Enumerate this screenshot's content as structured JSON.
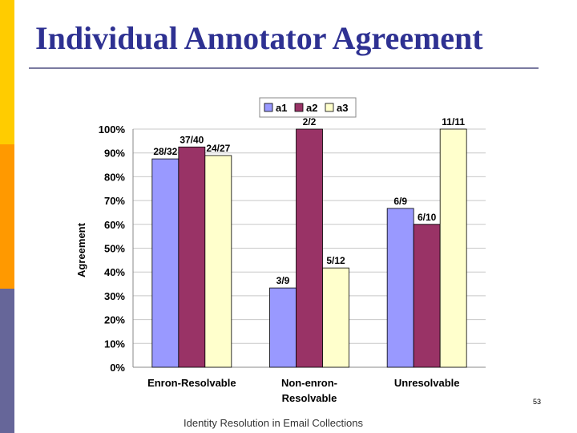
{
  "slide": {
    "title": "Individual Annotator Agreement",
    "footer": "Identity Resolution in Email Collections",
    "page_number": "53"
  },
  "colors": {
    "title": "#2e3192",
    "sidebar_top": "#ffcc00",
    "sidebar_mid": "#ff9900",
    "sidebar_bottom": "#666699",
    "a1": "#9999ff",
    "a2": "#993366",
    "a3": "#ffffcc"
  },
  "chart_data": {
    "type": "bar",
    "categories": [
      [
        "Enron-Resolvable"
      ],
      [
        "Non-enron-",
        "Resolvable"
      ],
      [
        "Unresolvable"
      ]
    ],
    "series": [
      {
        "name": "a1",
        "values": [
          87.5,
          33.3,
          66.7
        ],
        "labels": [
          "28/32",
          "3/9",
          "6/9"
        ]
      },
      {
        "name": "a2",
        "values": [
          92.5,
          100,
          60.0
        ],
        "labels": [
          "37/40",
          "2/2",
          "6/10"
        ]
      },
      {
        "name": "a3",
        "values": [
          88.9,
          41.7,
          100
        ],
        "labels": [
          "24/27",
          "5/12",
          "11/11"
        ]
      }
    ],
    "ylabel": "Agreement",
    "ylim": [
      0,
      100
    ],
    "yticks": [
      "0%",
      "10%",
      "20%",
      "30%",
      "40%",
      "50%",
      "60%",
      "70%",
      "80%",
      "90%",
      "100%"
    ],
    "grid": true,
    "legend": "top"
  }
}
